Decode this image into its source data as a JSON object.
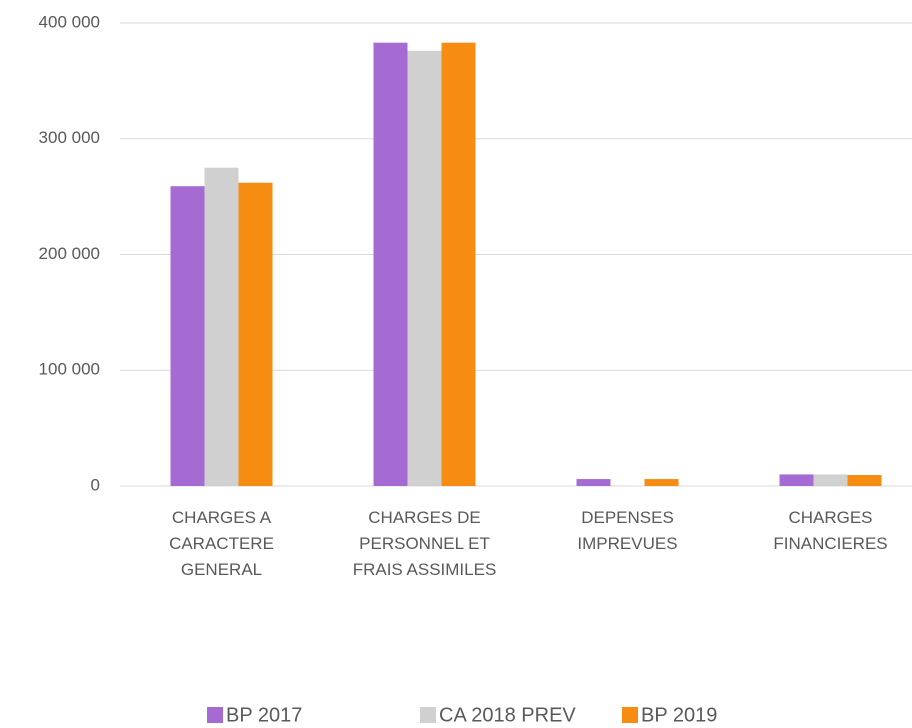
{
  "chart_data": {
    "type": "bar",
    "categories": [
      "CHARGES A\nCARACTERE\nGENERAL",
      "CHARGES DE\nPERSONNEL ET\nFRAIS ASSIMILES",
      "DEPENSES\nIMPREVUES",
      "CHARGES\nFINANCIERES"
    ],
    "series": [
      {
        "name": "BP 2017",
        "color": "#a66bd3",
        "values": [
          259000,
          383000,
          6000,
          10000
        ]
      },
      {
        "name": "CA 2018 PREV",
        "color": "#d0d0d0",
        "values": [
          275000,
          376000,
          0,
          10000
        ]
      },
      {
        "name": "BP 2019",
        "color": "#f78c12",
        "values": [
          262000,
          383000,
          6000,
          9500
        ]
      }
    ],
    "ylim": [
      0,
      400000
    ],
    "yticks": [
      0,
      {
        "value": 100000,
        "label": "100 000"
      },
      {
        "value": 200000,
        "label": "200 000"
      },
      {
        "value": 300000,
        "label": "300 000"
      },
      {
        "value": 400000,
        "label": "400 000"
      }
    ],
    "grid": true,
    "legend": "bottom"
  }
}
